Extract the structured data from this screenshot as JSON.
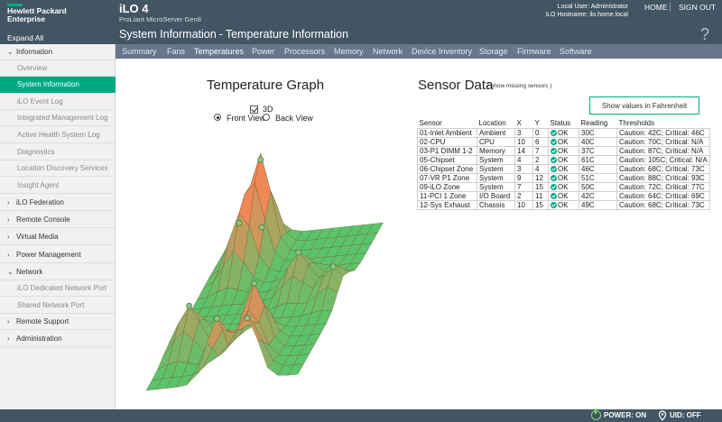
{
  "header": {
    "brand_line1": "Hewlett Packard",
    "brand_line2": "Enterprise",
    "app_title": "iLO 4",
    "server_model": "ProLiant MicroServer Gen8",
    "local_user_label": "Local User:",
    "local_user_value": "Administrator",
    "hostname_label": "iLO Hostname:",
    "hostname_value": "ilo.home.local",
    "home_link": "HOME",
    "signout_link": "SIGN OUT",
    "expand_all": "Expand All",
    "page_section": "System Information",
    "page_separator": "-",
    "page_title": "Temperature Information",
    "help_icon": "?"
  },
  "tabs": [
    {
      "label": "Summary"
    },
    {
      "label": "Fans"
    },
    {
      "label": "Temperatures",
      "active": true
    },
    {
      "label": "Power"
    },
    {
      "label": "Processors"
    },
    {
      "label": "Memory"
    },
    {
      "label": "Network"
    },
    {
      "label": "Device Inventory"
    },
    {
      "label": "Storage"
    },
    {
      "label": "Firmware"
    },
    {
      "label": "Software"
    }
  ],
  "sidebar": [
    {
      "label": "Information",
      "level": "top",
      "expanded": true
    },
    {
      "label": "Overview",
      "level": "sub"
    },
    {
      "label": "System Information",
      "level": "sub",
      "active": true
    },
    {
      "label": "iLO Event Log",
      "level": "sub"
    },
    {
      "label": "Integrated Management Log",
      "level": "sub"
    },
    {
      "label": "Active Health System Log",
      "level": "sub"
    },
    {
      "label": "Diagnostics",
      "level": "sub"
    },
    {
      "label": "Location Discovery Services",
      "level": "sub"
    },
    {
      "label": "Insight Agent",
      "level": "sub"
    },
    {
      "label": "iLO Federation",
      "level": "top"
    },
    {
      "label": "Remote Console",
      "level": "top"
    },
    {
      "label": "Virtual Media",
      "level": "top"
    },
    {
      "label": "Power Management",
      "level": "top"
    },
    {
      "label": "Network",
      "level": "top",
      "expanded": true
    },
    {
      "label": "iLO Dedicated Network Port",
      "level": "sub"
    },
    {
      "label": "Shared Network Port",
      "level": "sub"
    },
    {
      "label": "Remote Support",
      "level": "top"
    },
    {
      "label": "Administration",
      "level": "top"
    }
  ],
  "graph": {
    "title": "Temperature Graph",
    "checkbox_3d_label": "3D",
    "checkbox_3d_checked": true,
    "view_options": [
      "Front View",
      "Back View"
    ],
    "selected_view": "Front View"
  },
  "sensor_data": {
    "title": "Sensor Data",
    "show_missing_link": "( show missing sensors )",
    "fahrenheit_button": "Show values in Fahrenheit",
    "columns": [
      "Sensor",
      "Location",
      "X",
      "Y",
      "Status",
      "Reading",
      "Thresholds"
    ],
    "rows": [
      [
        "01-Inlet Ambient",
        "Ambient",
        "3",
        "0",
        "OK",
        "30C",
        "Caution: 42C; Critical: 46C"
      ],
      [
        "02-CPU",
        "CPU",
        "10",
        "6",
        "OK",
        "40C",
        "Caution: 70C; Critical: N/A"
      ],
      [
        "03-P1 DIMM 1-2",
        "Memory",
        "14",
        "7",
        "OK",
        "37C",
        "Caution: 87C; Critical: N/A"
      ],
      [
        "05-Chipset",
        "System",
        "4",
        "2",
        "OK",
        "61C",
        "Caution: 105C; Critical: N/A"
      ],
      [
        "06-Chipset Zone",
        "System",
        "3",
        "4",
        "OK",
        "46C",
        "Caution: 68C; Critical: 73C"
      ],
      [
        "07-VR P1 Zone",
        "System",
        "9",
        "12",
        "OK",
        "51C",
        "Caution: 88C; Critical: 93C"
      ],
      [
        "09-iLO Zone",
        "System",
        "7",
        "15",
        "OK",
        "50C",
        "Caution: 72C; Critical: 77C"
      ],
      [
        "11-PCI 1 Zone",
        "I/O Board",
        "2",
        "11",
        "OK",
        "42C",
        "Caution: 64C; Critical: 69C"
      ],
      [
        "12-Sys Exhaust",
        "Chassis",
        "10",
        "15",
        "OK",
        "49C",
        "Caution: 68C; Critical: 73C"
      ]
    ],
    "status_icon": "ok-check-icon"
  },
  "footer": {
    "power_label": "POWER: ON",
    "uid_label": "UID: OFF",
    "power_icon": "power-icon",
    "uid_icon": "uid-indicator-icon"
  },
  "colors": {
    "header_bg": "#425563",
    "tab_bg": "#67768a",
    "accent_green": "#01a982",
    "surface_green": "#5cc46a",
    "surface_orange": "#f2a86b"
  }
}
